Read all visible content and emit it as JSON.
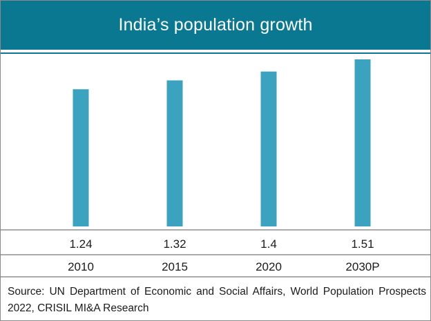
{
  "chart_data": {
    "type": "bar",
    "title": "India’s population growth",
    "categories": [
      "2010",
      "2015",
      "2020",
      "2030P"
    ],
    "values": [
      1.24,
      1.32,
      1.4,
      1.51
    ],
    "value_labels": [
      "1.24",
      "1.32",
      "1.4",
      "1.51"
    ],
    "bar_color": "#3ba3bf",
    "header_color": "#0b7892",
    "grid": false,
    "legend": "none",
    "note": "Source: UN Department of Economic and Social Affairs, World Population Prospects 2022, CRISIL MI&A Research"
  }
}
